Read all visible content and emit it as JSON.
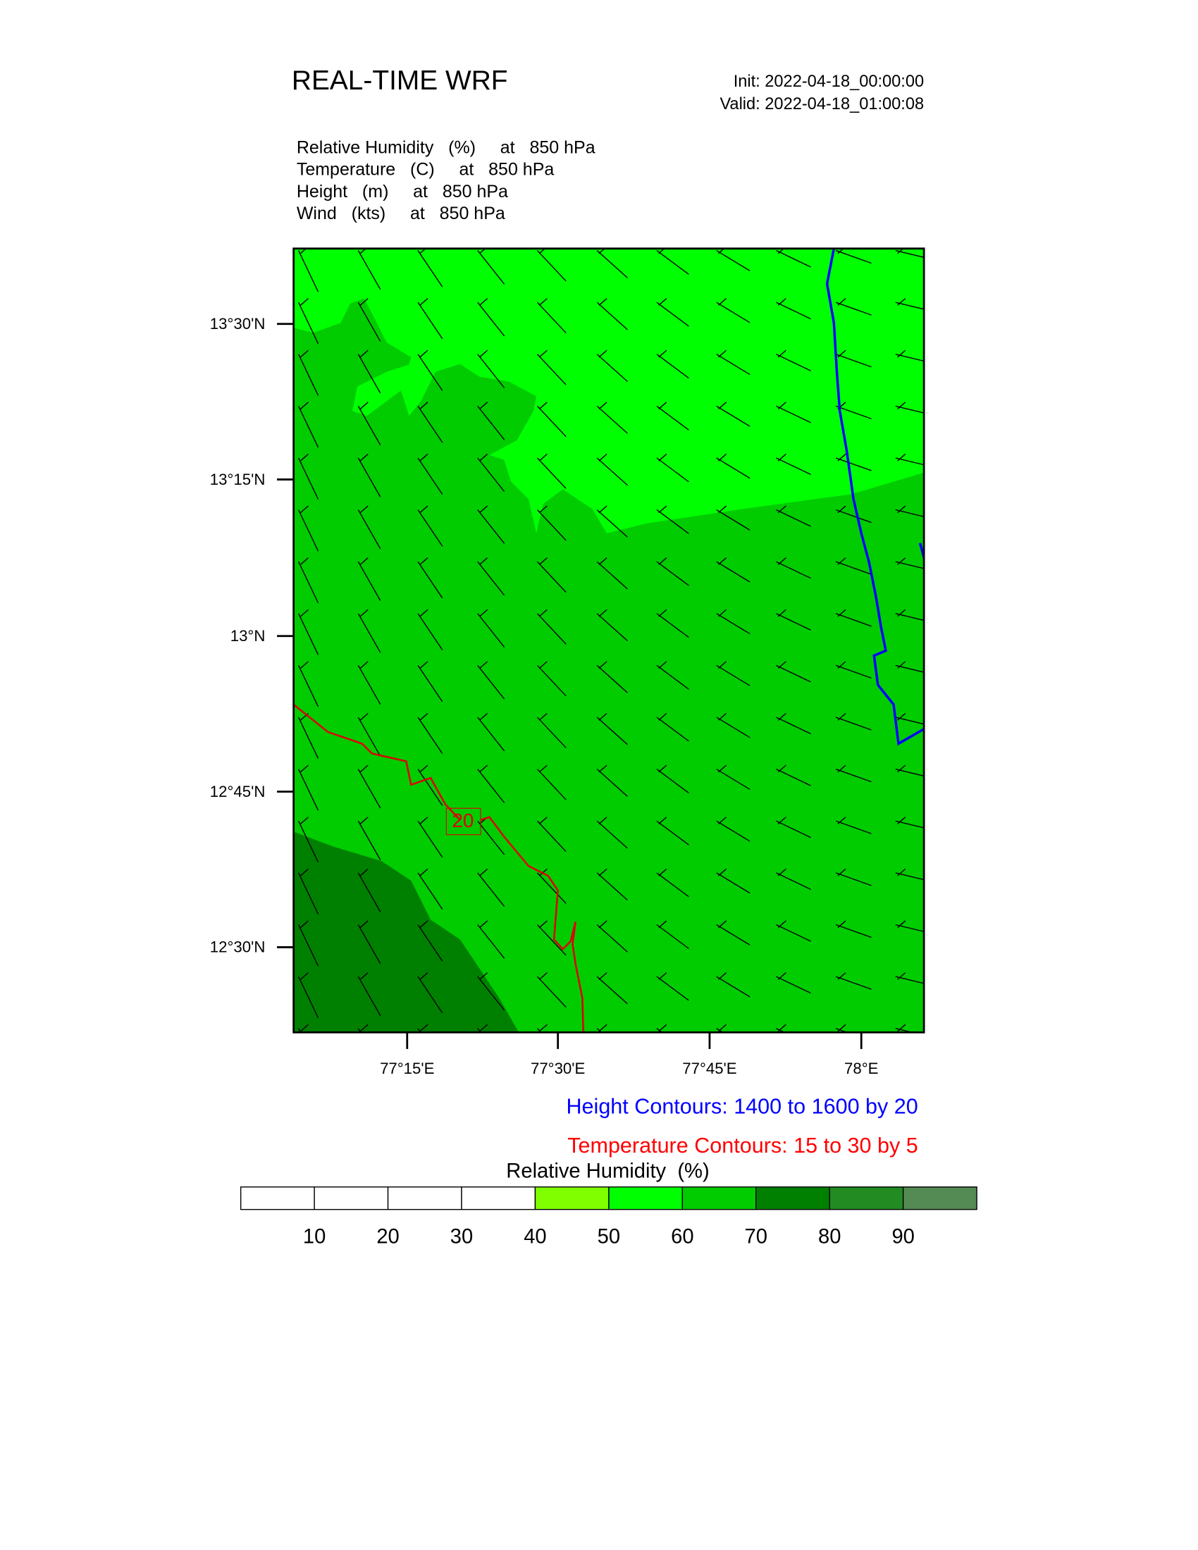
{
  "header": {
    "title": "REAL-TIME WRF",
    "init": "Init: 2022-04-18_00:00:00",
    "valid": "Valid: 2022-04-18_01:00:08"
  },
  "fields": [
    "Relative Humidity   (%)     at   850 hPa",
    "Temperature   (C)     at   850 hPa",
    "Height   (m)     at   850 hPa",
    "Wind   (kts)     at   850 hPa"
  ],
  "map": {
    "lat_labels": [
      "13°30'N",
      "13°15'N",
      "13°N",
      "12°45'N",
      "12°30'N"
    ],
    "lon_labels": [
      "77°15'E",
      "77°30'E",
      "77°45'E",
      "78°E"
    ],
    "contour_label": "20"
  },
  "legend": {
    "height": "Height Contours: 1400 to 1600 by 20",
    "temperature": "Temperature Contours: 15 to 30 by 5"
  },
  "colorbar": {
    "title": "Relative Humidity  (%)",
    "labels": [
      "10",
      "20",
      "30",
      "40",
      "50",
      "60",
      "70",
      "80",
      "90"
    ],
    "colors": [
      "#ffffff",
      "#ffffff",
      "#ffffff",
      "#ffffff",
      "#80ff00",
      "#00ff00",
      "#00cc00",
      "#008000",
      "#228b22",
      "#548b54"
    ]
  }
}
